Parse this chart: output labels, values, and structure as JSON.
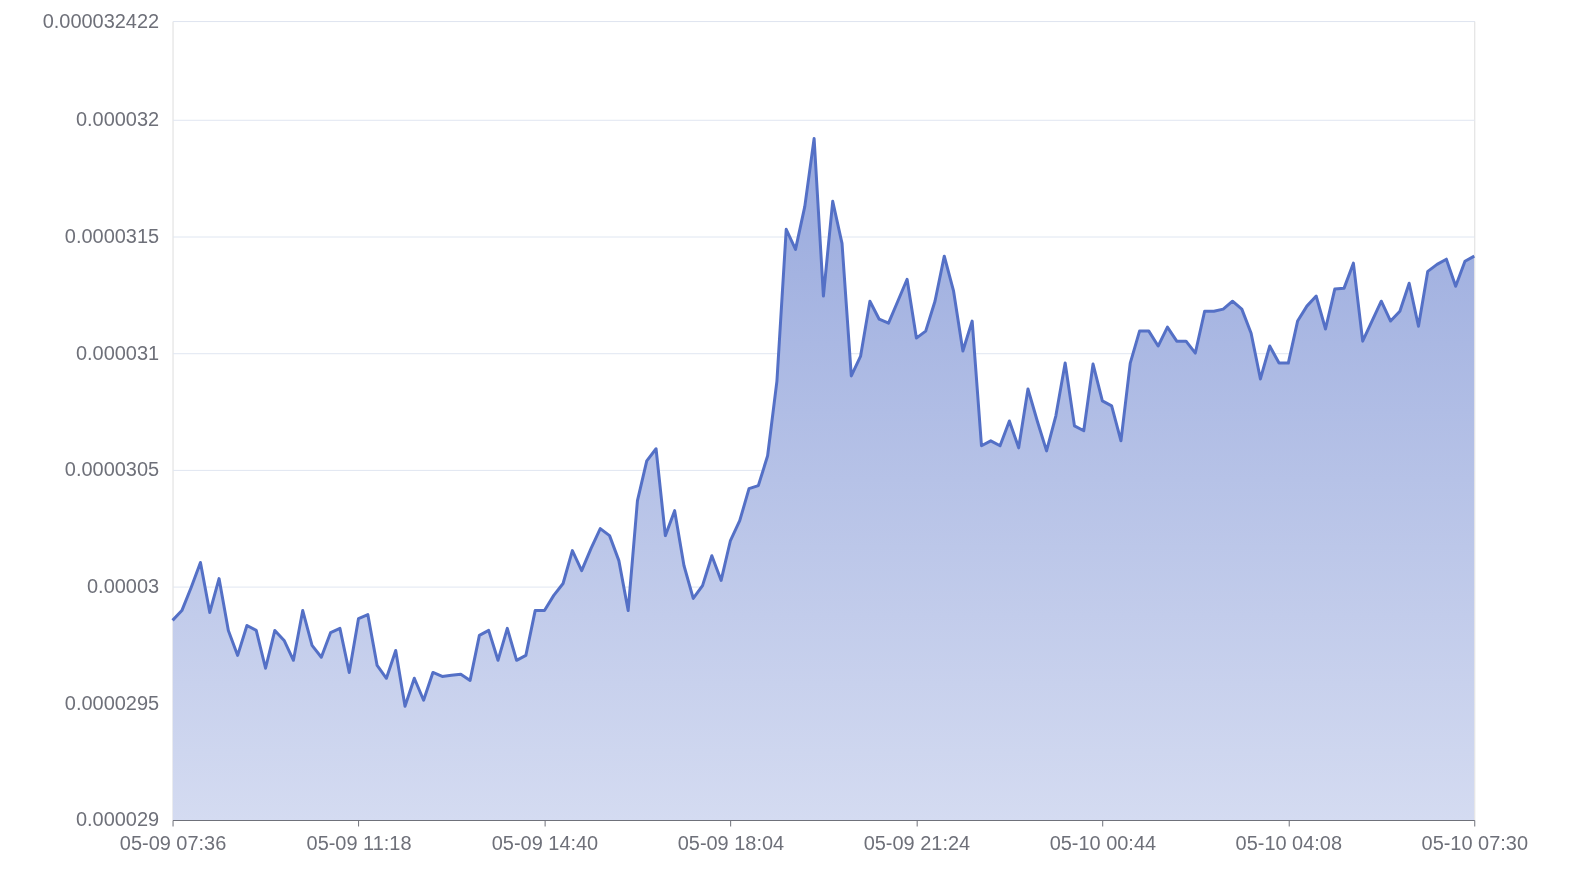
{
  "chart_data": {
    "type": "area",
    "categories": [
      "05-09 07:36",
      null,
      null,
      null,
      null,
      null,
      null,
      null,
      null,
      null,
      null,
      null,
      null,
      null,
      null,
      null,
      null,
      null,
      null,
      null,
      "05-09 11:18",
      null,
      null,
      null,
      null,
      null,
      null,
      null,
      null,
      null,
      null,
      null,
      null,
      null,
      null,
      null,
      null,
      null,
      null,
      null,
      "05-09 14:40",
      null,
      null,
      null,
      null,
      null,
      null,
      null,
      null,
      null,
      null,
      null,
      null,
      null,
      null,
      null,
      null,
      null,
      null,
      null,
      "05-09 18:04",
      null,
      null,
      null,
      null,
      null,
      null,
      null,
      null,
      null,
      null,
      null,
      null,
      null,
      null,
      null,
      null,
      null,
      null,
      null,
      "05-09 21:24",
      null,
      null,
      null,
      null,
      null,
      null,
      null,
      null,
      null,
      null,
      null,
      null,
      null,
      null,
      null,
      null,
      null,
      null,
      null,
      "05-10 00:44",
      null,
      null,
      null,
      null,
      null,
      null,
      null,
      null,
      null,
      null,
      null,
      null,
      null,
      null,
      null,
      null,
      null,
      null,
      null,
      "05-10 04:08",
      null,
      null,
      null,
      null,
      null,
      null,
      null,
      null,
      null,
      null,
      null,
      null,
      null,
      null,
      null,
      null,
      null,
      null,
      null,
      "05-10 07:30"
    ],
    "series": [
      {
        "color": "#5470c6",
        "values": [
          2.9855e-05,
          2.9897e-05,
          2.9996e-05,
          3.0103e-05,
          2.9889e-05,
          3.0034e-05,
          2.9812e-05,
          2.9705e-05,
          2.9833e-05,
          2.9812e-05,
          2.965e-05,
          2.9812e-05,
          2.9769e-05,
          2.9684e-05,
          2.9897e-05,
          2.9748e-05,
          2.9697e-05,
          2.9803e-05,
          2.9821e-05,
          2.9632e-05,
          2.9863e-05,
          2.988e-05,
          2.9662e-05,
          2.9607e-05,
          2.9726e-05,
          2.9487e-05,
          2.9607e-05,
          2.9513e-05,
          2.9632e-05,
          2.9615e-05,
          2.962e-05,
          2.9624e-05,
          2.9598e-05,
          2.9791e-05,
          2.9812e-05,
          2.9684e-05,
          2.9821e-05,
          2.9684e-05,
          2.9705e-05,
          2.9897e-05,
          2.9897e-05,
          2.9962e-05,
          3.0013e-05,
          3.0154e-05,
          3.0068e-05,
          3.0162e-05,
          3.0248e-05,
          3.0218e-05,
          3.0111e-05,
          2.9897e-05,
          3.0368e-05,
          3.0538e-05,
          3.059e-05,
          3.0218e-05,
          3.0325e-05,
          3.009e-05,
          2.9949e-05,
          3.0004e-05,
          3.0132e-05,
          3.0026e-05,
          3.0197e-05,
          3.0282e-05,
          3.0419e-05,
          3.0432e-05,
          3.056e-05,
          3.088e-05,
          3.153e-05,
          3.1444e-05,
          3.1628e-05,
          3.1919e-05,
          3.1244e-05,
          3.165e-05,
          3.147e-05,
          3.0902e-05,
          3.0987e-05,
          3.1222e-05,
          3.1145e-05,
          3.1128e-05,
          3.1222e-05,
          3.1316e-05,
          3.1064e-05,
          3.1094e-05,
          3.1222e-05,
          3.1415e-05,
          3.1265e-05,
          3.1009e-05,
          3.1137e-05,
          3.0603e-05,
          3.0624e-05,
          3.0603e-05,
          3.0709e-05,
          3.0594e-05,
          3.0846e-05,
          3.0709e-05,
          3.0581e-05,
          3.0731e-05,
          3.0957e-05,
          3.0688e-05,
          3.0667e-05,
          3.0953e-05,
          3.0795e-05,
          3.0774e-05,
          3.0624e-05,
          3.0957e-05,
          3.1094e-05,
          3.1094e-05,
          3.103e-05,
          3.1111e-05,
          3.1051e-05,
          3.1051e-05,
          3.1e-05,
          3.1179e-05,
          3.1179e-05,
          3.1188e-05,
          3.1222e-05,
          3.1188e-05,
          3.1085e-05,
          3.0889e-05,
          3.103e-05,
          3.0957e-05,
          3.0957e-05,
          3.1137e-05,
          3.1201e-05,
          3.1244e-05,
          3.1103e-05,
          3.1274e-05,
          3.1278e-05,
          3.1385e-05,
          3.1051e-05,
          3.1137e-05,
          3.1222e-05,
          3.1137e-05,
          3.1179e-05,
          3.1299e-05,
          3.1115e-05,
          3.135e-05,
          3.138e-05,
          3.1402e-05,
          3.1286e-05,
          3.1393e-05,
          3.1415e-05
        ]
      }
    ],
    "ylim": [
      2.9e-05,
      3.2422e-05
    ],
    "yticks": [
      {
        "value": 2.9e-05,
        "label": "0.000029"
      },
      {
        "value": 2.95e-05,
        "label": "0.0000295"
      },
      {
        "value": 3e-05,
        "label": "0.00003"
      },
      {
        "value": 3.05e-05,
        "label": "0.0000305"
      },
      {
        "value": 3.1e-05,
        "label": "0.000031"
      },
      {
        "value": 3.15e-05,
        "label": "0.0000315"
      },
      {
        "value": 3.2e-05,
        "label": "0.000032"
      },
      {
        "value": 3.2422e-05,
        "label": "0.000032422"
      }
    ],
    "grid": "y"
  }
}
